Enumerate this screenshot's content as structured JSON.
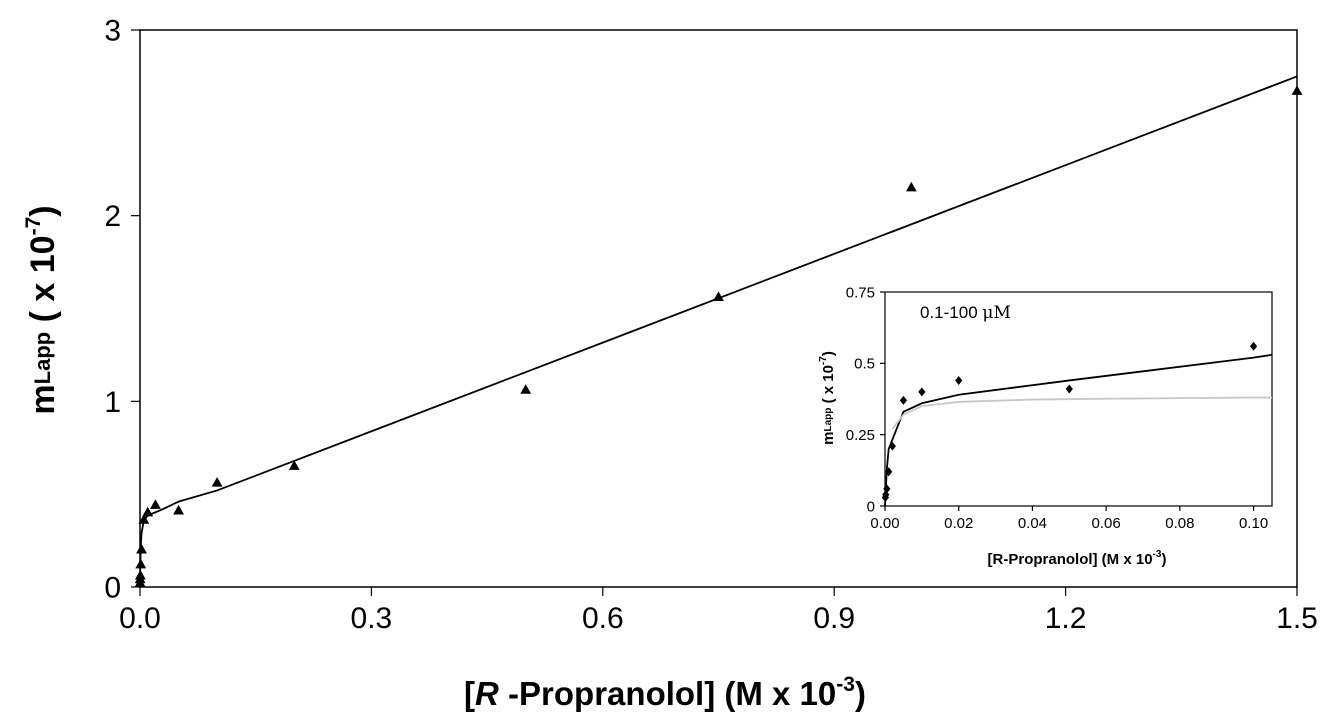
{
  "chart_data": [
    {
      "type": "scatter",
      "xlim": [
        0.0,
        1.5
      ],
      "ylim": [
        0,
        3
      ],
      "x_ticks": [
        "0.0",
        "0.3",
        "0.6",
        "0.9",
        "1.2",
        "1.5"
      ],
      "y_ticks": [
        "0",
        "1",
        "2",
        "3"
      ],
      "xlabel": {
        "open": "[",
        "italic": "R",
        "rest": " -Propranolol] (M x 10",
        "sup": "-3",
        "close": ")"
      },
      "ylabel": {
        "base": "m",
        "sub": "Lapp",
        "mid": " ( x 10",
        "sup": "-7",
        "close": ")"
      },
      "grid": false,
      "series": [
        {
          "marker": "triangle",
          "color": "#000000",
          "points": [
            {
              "x": 0.0001,
              "y": 0.02
            },
            {
              "x": 0.0002,
              "y": 0.04
            },
            {
              "x": 0.0005,
              "y": 0.06
            },
            {
              "x": 0.001,
              "y": 0.12
            },
            {
              "x": 0.002,
              "y": 0.2
            },
            {
              "x": 0.005,
              "y": 0.36
            },
            {
              "x": 0.01,
              "y": 0.4
            },
            {
              "x": 0.02,
              "y": 0.44
            },
            {
              "x": 0.05,
              "y": 0.41
            },
            {
              "x": 0.1,
              "y": 0.56
            },
            {
              "x": 0.2,
              "y": 0.65
            },
            {
              "x": 0.5,
              "y": 1.06
            },
            {
              "x": 0.75,
              "y": 1.56
            },
            {
              "x": 1.0,
              "y": 2.15
            },
            {
              "x": 1.5,
              "y": 2.67
            }
          ]
        },
        {
          "type": "line",
          "color": "#000000",
          "points": [
            {
              "x": 0.0,
              "y": 0.0
            },
            {
              "x": 0.0005,
              "y": 0.14
            },
            {
              "x": 0.001,
              "y": 0.22
            },
            {
              "x": 0.002,
              "y": 0.29
            },
            {
              "x": 0.005,
              "y": 0.36
            },
            {
              "x": 0.01,
              "y": 0.385
            },
            {
              "x": 0.03,
              "y": 0.42
            },
            {
              "x": 0.05,
              "y": 0.46
            },
            {
              "x": 0.1,
              "y": 0.52
            },
            {
              "x": 1.5,
              "y": 2.75
            }
          ]
        }
      ]
    },
    {
      "type": "scatter",
      "annotation": "0.1-100 ",
      "annotation_unit": "μM",
      "xlim": [
        0.0,
        0.105
      ],
      "ylim": [
        0,
        0.75
      ],
      "x_ticks": [
        "0.00",
        "0.02",
        "0.04",
        "0.06",
        "0.08",
        "0.10"
      ],
      "y_ticks": [
        "0",
        "0.25",
        "0.5",
        "0.75"
      ],
      "xlabel": {
        "base": "[R-Propranolol] (M x 10",
        "sup": "-3",
        "close": ")"
      },
      "ylabel": {
        "base": "m",
        "sub": "Lapp",
        "mid": "  ( x 10",
        "sup": "-7",
        "close": ")"
      },
      "grid": false,
      "series": [
        {
          "marker": "diamond",
          "color": "#000000",
          "points": [
            {
              "x": 0.0001,
              "y": 0.03
            },
            {
              "x": 0.0002,
              "y": 0.04
            },
            {
              "x": 0.0005,
              "y": 0.06
            },
            {
              "x": 0.001,
              "y": 0.12
            },
            {
              "x": 0.002,
              "y": 0.21
            },
            {
              "x": 0.005,
              "y": 0.37
            },
            {
              "x": 0.01,
              "y": 0.4
            },
            {
              "x": 0.02,
              "y": 0.44
            },
            {
              "x": 0.05,
              "y": 0.41
            },
            {
              "x": 0.1,
              "y": 0.56
            }
          ]
        },
        {
          "type": "line",
          "color": "#000000",
          "points": [
            {
              "x": 0.0,
              "y": 0.0
            },
            {
              "x": 0.0005,
              "y": 0.13
            },
            {
              "x": 0.001,
              "y": 0.2
            },
            {
              "x": 0.005,
              "y": 0.33
            },
            {
              "x": 0.01,
              "y": 0.36
            },
            {
              "x": 0.02,
              "y": 0.39
            },
            {
              "x": 0.05,
              "y": 0.44
            },
            {
              "x": 0.1,
              "y": 0.52
            },
            {
              "x": 0.105,
              "y": 0.53
            }
          ]
        },
        {
          "type": "line",
          "color": "#c8c8c8",
          "points": [
            {
              "x": 0.002,
              "y": 0.27
            },
            {
              "x": 0.005,
              "y": 0.32
            },
            {
              "x": 0.01,
              "y": 0.35
            },
            {
              "x": 0.02,
              "y": 0.365
            },
            {
              "x": 0.04,
              "y": 0.373
            },
            {
              "x": 0.06,
              "y": 0.376
            },
            {
              "x": 0.08,
              "y": 0.378
            },
            {
              "x": 0.1,
              "y": 0.38
            },
            {
              "x": 0.105,
              "y": 0.38
            }
          ]
        }
      ]
    }
  ]
}
